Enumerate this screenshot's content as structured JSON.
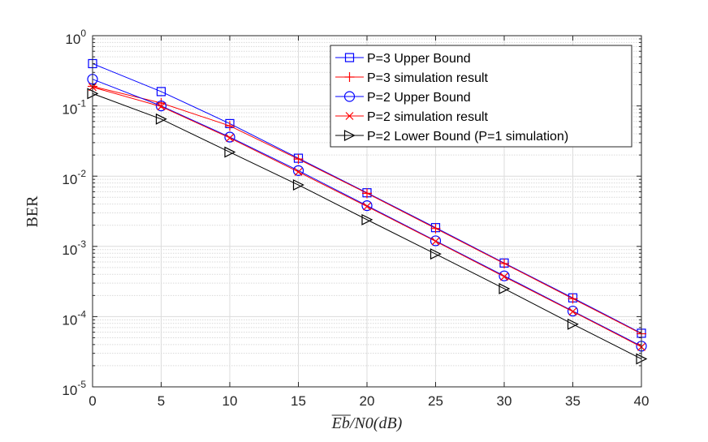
{
  "chart_data": {
    "type": "line",
    "x_scale": "linear",
    "y_scale": "log",
    "xlim": [
      0,
      40
    ],
    "ylim": [
      1e-05,
      1
    ],
    "grid": true,
    "legend_position": "top-right",
    "x_ticks": [
      0,
      5,
      10,
      15,
      20,
      25,
      30,
      35,
      40
    ],
    "x_tick_labels": [
      "0",
      "5",
      "10",
      "15",
      "20",
      "25",
      "30",
      "35",
      "40"
    ],
    "y_ticks": [
      1e-05,
      0.0001,
      0.001,
      0.01,
      0.1,
      1
    ],
    "y_tick_labels": [
      {
        "base": "10",
        "exp": "-5"
      },
      {
        "base": "10",
        "exp": "-4"
      },
      {
        "base": "10",
        "exp": "-3"
      },
      {
        "base": "10",
        "exp": "-2"
      },
      {
        "base": "10",
        "exp": "-1"
      },
      {
        "base": "10",
        "exp": "0"
      }
    ],
    "xlabel": {
      "overline": "Eb",
      "rest": "/N0(dB)"
    },
    "ylabel": "BER",
    "x": [
      0,
      5,
      10,
      15,
      20,
      25,
      30,
      35,
      40
    ],
    "series": [
      {
        "name": "P=3 Upper Bound",
        "color": "#0000ff",
        "marker": "square",
        "values": [
          0.4,
          0.16,
          0.056,
          0.018,
          0.0058,
          0.00185,
          0.00058,
          0.000185,
          5.8e-05
        ]
      },
      {
        "name": "P=3 simulation result",
        "color": "#ff0000",
        "marker": "plus",
        "values": [
          0.19,
          0.11,
          0.052,
          0.0175,
          0.0057,
          0.0018,
          0.00057,
          0.00018,
          5.7e-05
        ]
      },
      {
        "name": "P=2 Upper Bound",
        "color": "#0000ff",
        "marker": "circle",
        "values": [
          0.24,
          0.1,
          0.036,
          0.012,
          0.0038,
          0.0012,
          0.00038,
          0.00012,
          3.8e-05
        ]
      },
      {
        "name": "P=2 simulation result",
        "color": "#ff0000",
        "marker": "x",
        "values": [
          0.185,
          0.098,
          0.035,
          0.0115,
          0.0037,
          0.00118,
          0.00037,
          0.000118,
          3.7e-05
        ]
      },
      {
        "name": "P=2 Lower Bound (P=1 simulation)",
        "color": "#000000",
        "marker": "triangle-right",
        "values": [
          0.15,
          0.065,
          0.022,
          0.0075,
          0.0024,
          0.00078,
          0.00025,
          7.8e-05,
          2.5e-05
        ]
      }
    ]
  }
}
